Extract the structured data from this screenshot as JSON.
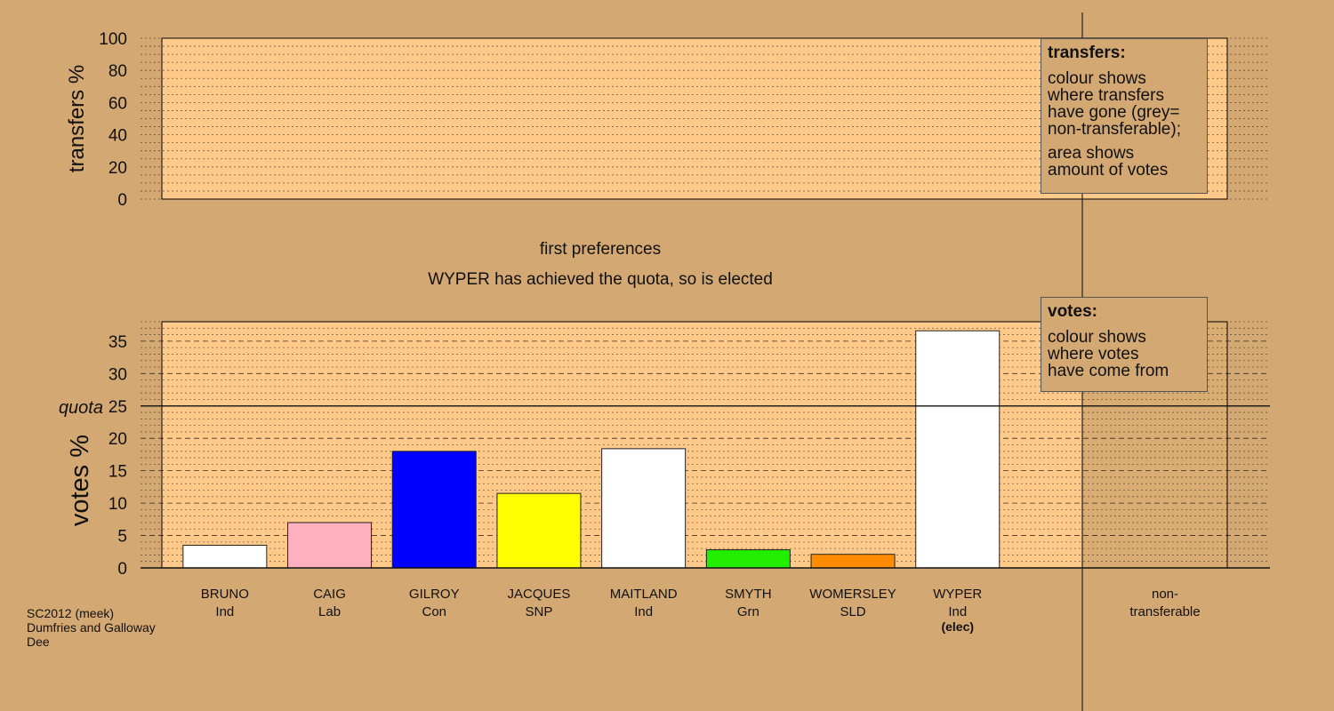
{
  "chart_data": [
    {
      "type": "area",
      "ylabel": "transfers %",
      "ylim": [
        0,
        100
      ],
      "yticks": [
        0,
        20,
        40,
        60,
        80,
        100
      ],
      "grid": true,
      "series": []
    },
    {
      "type": "bar",
      "ylabel": "votes %",
      "ylim": [
        0,
        38
      ],
      "yticks": [
        0,
        5,
        10,
        15,
        20,
        25,
        30,
        35
      ],
      "grid": true,
      "quota": {
        "label": "quota",
        "value": 25
      },
      "categories": [
        {
          "name": "BRUNO",
          "party": "Ind",
          "value": 3.5,
          "color": "#FFFFFF",
          "note": ""
        },
        {
          "name": "CAIG",
          "party": "Lab",
          "value": 7.0,
          "color": "#FFB0C0",
          "note": ""
        },
        {
          "name": "GILROY",
          "party": "Con",
          "value": 18.0,
          "color": "#0000FF",
          "note": ""
        },
        {
          "name": "JACQUES",
          "party": "SNP",
          "value": 11.5,
          "color": "#FFFF00",
          "note": ""
        },
        {
          "name": "MAITLAND",
          "party": "Ind",
          "value": 18.4,
          "color": "#FFFFFF",
          "note": ""
        },
        {
          "name": "SMYTH",
          "party": "Grn",
          "value": 2.8,
          "color": "#22EE00",
          "note": ""
        },
        {
          "name": "WOMERSLEY",
          "party": "SLD",
          "value": 2.1,
          "color": "#FF8C00",
          "note": ""
        },
        {
          "name": "WYPER",
          "party": "Ind",
          "value": 36.6,
          "color": "#FFFFFF",
          "note": "(elec)"
        }
      ],
      "non_transferable": {
        "label_line1": "non-",
        "label_line2": "transferable",
        "value": 0
      }
    }
  ],
  "headings": {
    "stage": "first preferences",
    "status": "WYPER has achieved the quota, so is elected"
  },
  "transfers_box": {
    "title": "transfers:",
    "lines": [
      "colour shows",
      "where transfers",
      "have gone (grey=",
      "non-transferable);"
    ],
    "lines2": [
      "area shows",
      "amount of votes"
    ]
  },
  "votes_box": {
    "title": "votes:",
    "lines": [
      "colour shows",
      "where votes",
      "have come from"
    ]
  },
  "footer": {
    "line1": "SC2012 (meek)",
    "line2": "Dumfries and Galloway",
    "line3": "Dee"
  },
  "colors": {
    "background": "#D4A873",
    "plot_fill": "#FFC98A",
    "plot_fill_dark": "#D9AC74"
  }
}
